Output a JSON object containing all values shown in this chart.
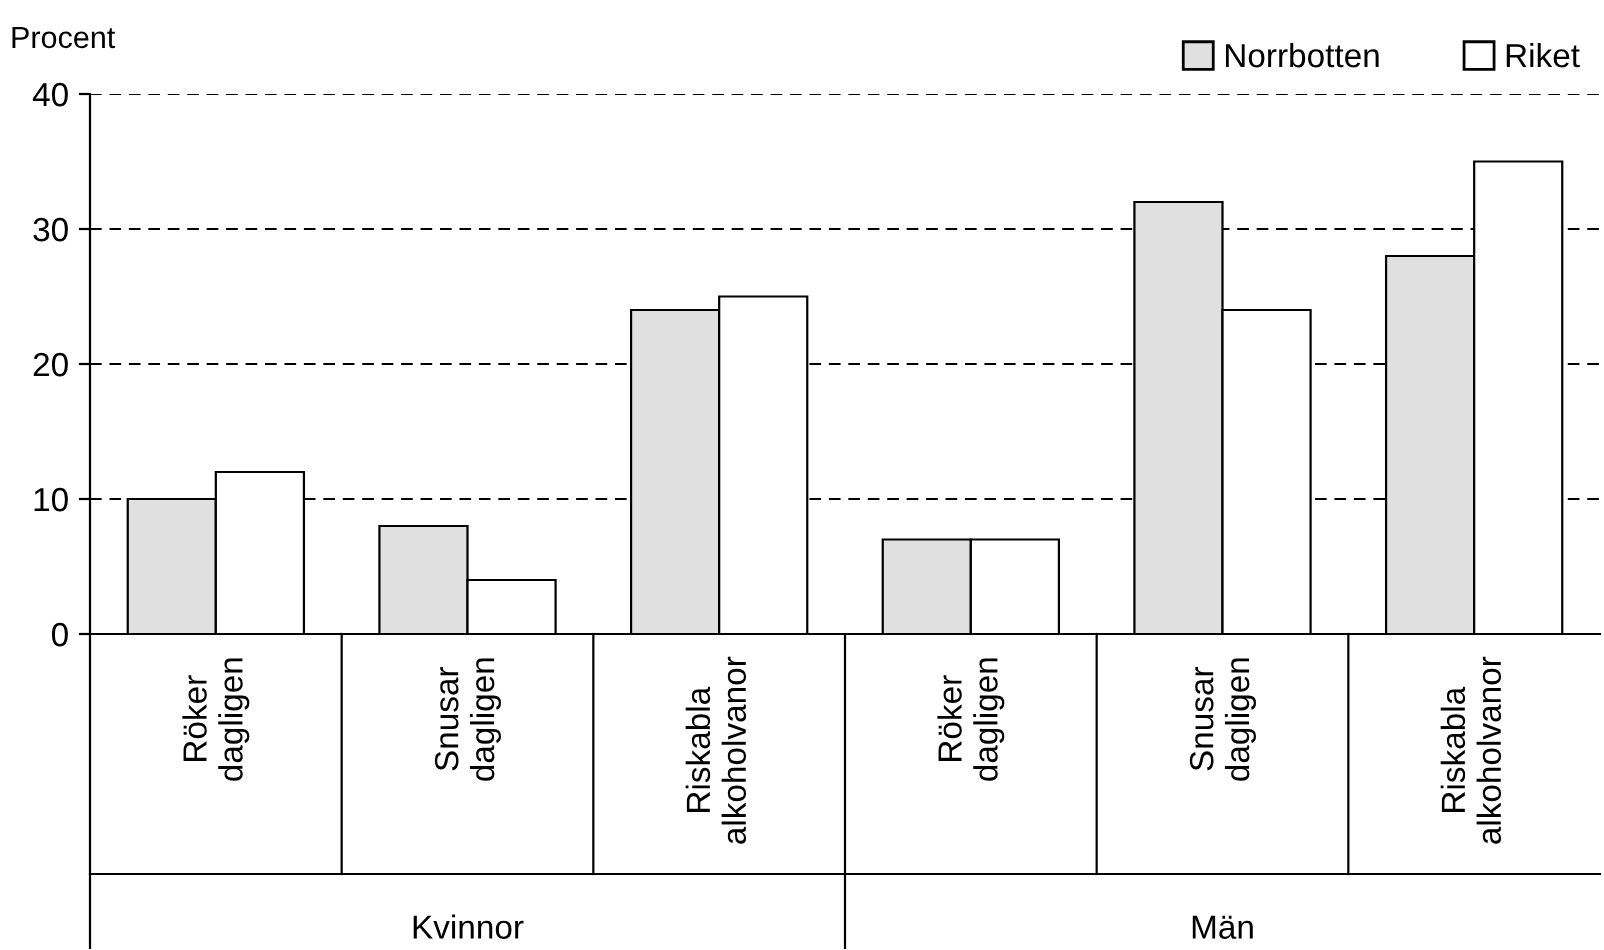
{
  "chart_data": {
    "type": "bar",
    "ylabel": "Procent",
    "categories": [
      "Röker\ndagligen",
      "Snusar\ndagligen",
      "Riskabla\nalkoholvanor",
      "Röker\ndagligen",
      "Snusar\ndagligen",
      "Riskabla\nalkoholvanor"
    ],
    "series": [
      {
        "name": "Norrbotten",
        "color": "#e0e0e0",
        "values": [
          10,
          8,
          24,
          7,
          32,
          28
        ]
      },
      {
        "name": "Riket",
        "color": "#ffffff",
        "values": [
          12,
          4,
          25,
          7,
          24,
          35
        ]
      }
    ],
    "ylim": [
      0,
      40
    ],
    "yticks": [
      0,
      10,
      20,
      30,
      40
    ],
    "grid": "y",
    "legend": "top right",
    "annotations": [
      "Kvinnor",
      "Män"
    ]
  }
}
